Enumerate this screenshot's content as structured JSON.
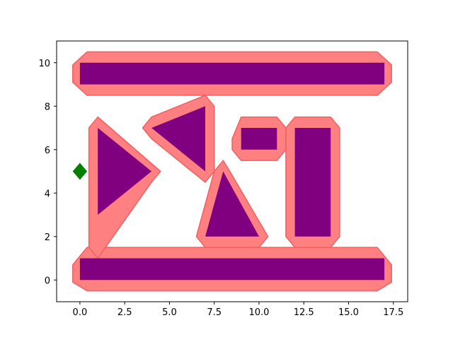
{
  "chart_data": {
    "type": "scatter",
    "title": "",
    "xlabel": "",
    "ylabel": "",
    "xlim": [
      -1.3,
      18.3
    ],
    "ylim": [
      -1,
      11
    ],
    "xticks": [
      0,
      2.5,
      5,
      7.5,
      10,
      12.5,
      15,
      17.5
    ],
    "xtick_labels": [
      "0.0",
      "2.5",
      "5.0",
      "7.5",
      "10.0",
      "12.5",
      "15.0",
      "17.5"
    ],
    "yticks": [
      0,
      2,
      4,
      6,
      8,
      10
    ],
    "ytick_labels": [
      "0",
      "2",
      "4",
      "6",
      "8",
      "10"
    ],
    "grid": false,
    "colors": {
      "buffer": "#ff8080",
      "buffer_edge": "#f06060",
      "obstacle": "#800080",
      "marker": "#008000"
    },
    "buffer_zones": [
      {
        "name": "top-bar-buffer",
        "points": [
          [
            -0.4,
            9.1
          ],
          [
            -0.4,
            9.9
          ],
          [
            0.4,
            10.5
          ],
          [
            16.6,
            10.5
          ],
          [
            17.4,
            9.9
          ],
          [
            17.4,
            9.1
          ],
          [
            16.6,
            8.5
          ],
          [
            0.4,
            8.5
          ]
        ]
      },
      {
        "name": "bottom-bar-buffer",
        "points": [
          [
            -0.4,
            -0.1
          ],
          [
            -0.4,
            0.7
          ],
          [
            0.4,
            1.5
          ],
          [
            16.6,
            1.5
          ],
          [
            17.4,
            0.7
          ],
          [
            17.4,
            -0.1
          ],
          [
            16.6,
            -0.5
          ],
          [
            0.4,
            -0.5
          ]
        ]
      },
      {
        "name": "left-triangle-buffer",
        "points": [
          [
            0.5,
            3.0
          ],
          [
            0.5,
            7.0
          ],
          [
            1.0,
            7.5
          ],
          [
            4.5,
            5.0
          ],
          [
            4.0,
            4.5
          ],
          [
            1.0,
            1.0
          ],
          [
            0.5,
            1.5
          ]
        ]
      },
      {
        "name": "upper-triangle-buffer",
        "points": [
          [
            3.5,
            7.0
          ],
          [
            4.0,
            7.5
          ],
          [
            7.0,
            8.5
          ],
          [
            7.5,
            8.0
          ],
          [
            7.5,
            5.0
          ],
          [
            7.0,
            4.5
          ],
          [
            4.0,
            6.5
          ]
        ]
      },
      {
        "name": "small-rect-buffer",
        "points": [
          [
            8.5,
            6.5
          ],
          [
            9.0,
            7.5
          ],
          [
            11.0,
            7.5
          ],
          [
            11.5,
            7.0
          ],
          [
            11.5,
            6.0
          ],
          [
            11.0,
            5.5
          ],
          [
            9.0,
            5.5
          ],
          [
            8.5,
            6.0
          ]
        ]
      },
      {
        "name": "tall-rect-buffer",
        "points": [
          [
            11.5,
            2.0
          ],
          [
            11.5,
            7.0
          ],
          [
            12.0,
            7.5
          ],
          [
            14.0,
            7.5
          ],
          [
            14.5,
            7.0
          ],
          [
            14.5,
            2.0
          ],
          [
            14.0,
            1.5
          ],
          [
            12.0,
            1.5
          ]
        ]
      },
      {
        "name": "middle-triangle-buffer",
        "points": [
          [
            6.5,
            2.0
          ],
          [
            7.0,
            1.5
          ],
          [
            10.0,
            1.5
          ],
          [
            10.5,
            2.0
          ],
          [
            8.3,
            5.1
          ],
          [
            8.0,
            5.5
          ],
          [
            7.5,
            5.0
          ]
        ]
      }
    ],
    "obstacles": [
      {
        "name": "top-bar",
        "points": [
          [
            0,
            9
          ],
          [
            17,
            9
          ],
          [
            17,
            10
          ],
          [
            0,
            10
          ]
        ]
      },
      {
        "name": "bottom-bar",
        "points": [
          [
            0,
            0
          ],
          [
            17,
            0
          ],
          [
            17,
            1
          ],
          [
            0,
            1
          ]
        ]
      },
      {
        "name": "left-triangle",
        "points": [
          [
            1,
            3
          ],
          [
            4,
            5
          ],
          [
            1,
            7
          ]
        ]
      },
      {
        "name": "upper-triangle",
        "points": [
          [
            4,
            7
          ],
          [
            7,
            8
          ],
          [
            7,
            5
          ]
        ]
      },
      {
        "name": "small-rect",
        "points": [
          [
            9,
            6
          ],
          [
            11,
            6
          ],
          [
            11,
            7
          ],
          [
            9,
            7
          ]
        ]
      },
      {
        "name": "tall-rect",
        "points": [
          [
            12,
            2
          ],
          [
            14,
            2
          ],
          [
            14,
            7
          ],
          [
            12,
            7
          ]
        ]
      },
      {
        "name": "middle-triangle",
        "points": [
          [
            7,
            2
          ],
          [
            10,
            2
          ],
          [
            8,
            5
          ]
        ]
      }
    ],
    "markers": [
      {
        "name": "start-marker",
        "x": 0,
        "y": 5,
        "shape": "diamond"
      }
    ]
  }
}
